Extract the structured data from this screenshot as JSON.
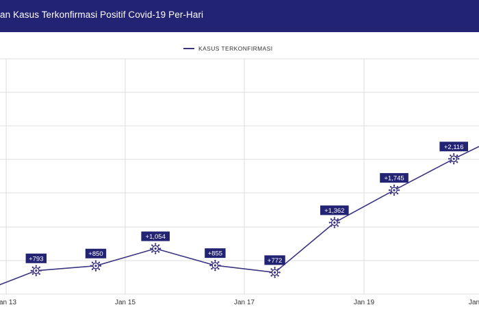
{
  "header": {
    "title": "an Kasus Terkonfirmasi Positif Covid-19 Per-Hari"
  },
  "colors": {
    "header_bg": "#232374",
    "series": "#3a3380",
    "label_bg": "#232374",
    "grid": "#dcdcdc"
  },
  "chart_data": {
    "type": "line",
    "title": "an Kasus Terkonfirmasi Positif Covid-19 Per-Hari",
    "xlabel": "",
    "ylabel": "",
    "grid": true,
    "legend": "top-center",
    "ticks": [
      "Jan 13",
      "Jan 15",
      "Jan 17",
      "Jan 19",
      "Jan"
    ],
    "series": [
      {
        "name": "KASUS TERKONFIRMASI",
        "x": [
          "Jan 13",
          "Jan 14",
          "Jan 15",
          "Jan 16",
          "Jan 17",
          "Jan 18",
          "Jan 19",
          "Jan 20",
          "Jan 21"
        ],
        "values": [
          520,
          793,
          850,
          1054,
          855,
          772,
          1362,
          1745,
          2116
        ],
        "labels": [
          "",
          "+793",
          "+850",
          "+1,054",
          "+855",
          "+772",
          "+1,362",
          "+1,745",
          "+2,116"
        ]
      }
    ]
  }
}
